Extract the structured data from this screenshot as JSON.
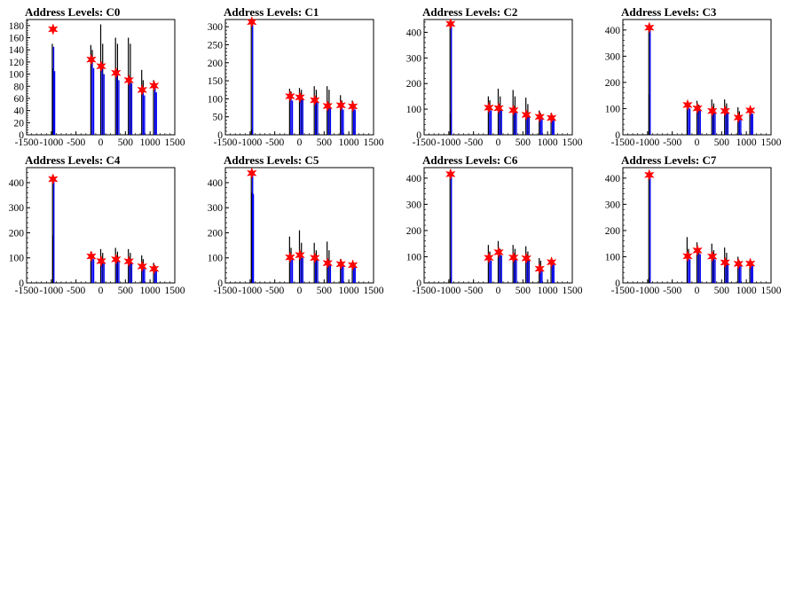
{
  "chart_data": [
    {
      "type": "bar",
      "title": "Address Levels: C0",
      "xlim": [
        -1500,
        1500
      ],
      "ylim": [
        0,
        190
      ],
      "yticks": [
        0,
        20,
        40,
        60,
        80,
        100,
        120,
        140,
        160,
        180
      ],
      "xticks": [
        -1500,
        -1000,
        -500,
        0,
        500,
        1000,
        1500
      ],
      "black_bars": [
        [
          -980,
          150
        ],
        [
          -960,
          110
        ],
        [
          -200,
          148
        ],
        [
          -170,
          140
        ],
        [
          0,
          182
        ],
        [
          40,
          150
        ],
        [
          300,
          160
        ],
        [
          340,
          150
        ],
        [
          560,
          160
        ],
        [
          600,
          150
        ],
        [
          830,
          107
        ],
        [
          860,
          90
        ],
        [
          1070,
          90
        ],
        [
          1100,
          80
        ]
      ],
      "blue_bars": [
        [
          -980,
          145
        ],
        [
          -960,
          105
        ],
        [
          -200,
          118
        ],
        [
          -170,
          110
        ],
        [
          0,
          115
        ],
        [
          40,
          100
        ],
        [
          300,
          100
        ],
        [
          340,
          90
        ],
        [
          560,
          90
        ],
        [
          600,
          85
        ],
        [
          830,
          72
        ],
        [
          860,
          65
        ],
        [
          1070,
          80
        ],
        [
          1100,
          70
        ]
      ],
      "peaks": [
        [
          -965,
          174
        ],
        [
          -190,
          124
        ],
        [
          10,
          113
        ],
        [
          310,
          102
        ],
        [
          570,
          90
        ],
        [
          840,
          74
        ],
        [
          1080,
          81
        ]
      ]
    },
    {
      "type": "bar",
      "title": "Address Levels: C1",
      "xlim": [
        -1500,
        1500
      ],
      "ylim": [
        0,
        320
      ],
      "yticks": [
        0,
        50,
        100,
        150,
        200,
        250,
        300
      ],
      "xticks": [
        -1500,
        -1000,
        -500,
        0,
        500,
        1000,
        1500
      ],
      "black_bars": [
        [
          -975,
          310
        ],
        [
          -960,
          15
        ],
        [
          -200,
          128
        ],
        [
          -170,
          120
        ],
        [
          0,
          130
        ],
        [
          40,
          125
        ],
        [
          300,
          135
        ],
        [
          340,
          125
        ],
        [
          560,
          135
        ],
        [
          600,
          125
        ],
        [
          830,
          110
        ],
        [
          860,
          95
        ],
        [
          1070,
          95
        ],
        [
          1100,
          85
        ]
      ],
      "blue_bars": [
        [
          -975,
          305
        ],
        [
          -200,
          105
        ],
        [
          -170,
          95
        ],
        [
          0,
          110
        ],
        [
          40,
          100
        ],
        [
          300,
          100
        ],
        [
          340,
          90
        ],
        [
          560,
          80
        ],
        [
          600,
          75
        ],
        [
          830,
          80
        ],
        [
          860,
          70
        ],
        [
          1070,
          80
        ],
        [
          1100,
          70
        ]
      ],
      "peaks": [
        [
          -965,
          313
        ],
        [
          -190,
          107
        ],
        [
          10,
          104
        ],
        [
          310,
          96
        ],
        [
          570,
          80
        ],
        [
          840,
          82
        ],
        [
          1080,
          79
        ]
      ]
    },
    {
      "type": "bar",
      "title": "Address Levels: C2",
      "xlim": [
        -1500,
        1500
      ],
      "ylim": [
        0,
        450
      ],
      "yticks": [
        0,
        100,
        200,
        300,
        400
      ],
      "xticks": [
        -1500,
        -1000,
        -500,
        0,
        500,
        1000,
        1500
      ],
      "black_bars": [
        [
          -975,
          440
        ],
        [
          -960,
          85
        ],
        [
          -200,
          150
        ],
        [
          -170,
          135
        ],
        [
          0,
          180
        ],
        [
          40,
          150
        ],
        [
          300,
          175
        ],
        [
          340,
          150
        ],
        [
          560,
          145
        ],
        [
          600,
          120
        ],
        [
          830,
          95
        ],
        [
          860,
          85
        ],
        [
          1070,
          85
        ],
        [
          1100,
          75
        ]
      ],
      "blue_bars": [
        [
          -975,
          425
        ],
        [
          -200,
          110
        ],
        [
          -170,
          95
        ],
        [
          0,
          110
        ],
        [
          40,
          100
        ],
        [
          300,
          95
        ],
        [
          340,
          90
        ],
        [
          560,
          80
        ],
        [
          600,
          75
        ],
        [
          830,
          70
        ],
        [
          860,
          65
        ],
        [
          1070,
          65
        ],
        [
          1100,
          60
        ]
      ],
      "peaks": [
        [
          -965,
          433
        ],
        [
          -190,
          106
        ],
        [
          10,
          104
        ],
        [
          310,
          96
        ],
        [
          570,
          78
        ],
        [
          840,
          70
        ],
        [
          1080,
          66
        ]
      ]
    },
    {
      "type": "bar",
      "title": "Address Levels: C3",
      "xlim": [
        -1500,
        1500
      ],
      "ylim": [
        0,
        440
      ],
      "yticks": [
        0,
        100,
        200,
        300,
        400
      ],
      "xticks": [
        -1500,
        -1000,
        -500,
        0,
        500,
        1000,
        1500
      ],
      "black_bars": [
        [
          -975,
          415
        ],
        [
          -960,
          155
        ],
        [
          -200,
          120
        ],
        [
          -170,
          110
        ],
        [
          0,
          130
        ],
        [
          40,
          115
        ],
        [
          300,
          135
        ],
        [
          340,
          120
        ],
        [
          560,
          135
        ],
        [
          600,
          120
        ],
        [
          830,
          105
        ],
        [
          860,
          90
        ],
        [
          1070,
          95
        ],
        [
          1100,
          85
        ]
      ],
      "blue_bars": [
        [
          -975,
          410
        ],
        [
          -200,
          110
        ],
        [
          -170,
          100
        ],
        [
          0,
          105
        ],
        [
          40,
          95
        ],
        [
          300,
          95
        ],
        [
          340,
          90
        ],
        [
          560,
          90
        ],
        [
          600,
          85
        ],
        [
          830,
          70
        ],
        [
          860,
          65
        ],
        [
          1070,
          90
        ],
        [
          1100,
          80
        ]
      ],
      "peaks": [
        [
          -965,
          409
        ],
        [
          -190,
          114
        ],
        [
          10,
          101
        ],
        [
          310,
          91
        ],
        [
          570,
          91
        ],
        [
          840,
          66
        ],
        [
          1080,
          93
        ]
      ]
    },
    {
      "type": "bar",
      "title": "Address Levels: C4",
      "xlim": [
        -1500,
        1500
      ],
      "ylim": [
        0,
        460
      ],
      "yticks": [
        0,
        100,
        200,
        300,
        400
      ],
      "xticks": [
        -1500,
        -1000,
        -500,
        0,
        500,
        1000,
        1500
      ],
      "black_bars": [
        [
          -975,
          430
        ],
        [
          -960,
          190
        ],
        [
          -200,
          125
        ],
        [
          -170,
          115
        ],
        [
          0,
          135
        ],
        [
          40,
          120
        ],
        [
          300,
          140
        ],
        [
          340,
          125
        ],
        [
          560,
          135
        ],
        [
          600,
          120
        ],
        [
          830,
          110
        ],
        [
          860,
          95
        ],
        [
          1070,
          80
        ],
        [
          1100,
          70
        ]
      ],
      "blue_bars": [
        [
          -975,
          410
        ],
        [
          -200,
          105
        ],
        [
          -170,
          95
        ],
        [
          0,
          95
        ],
        [
          40,
          85
        ],
        [
          300,
          95
        ],
        [
          340,
          85
        ],
        [
          560,
          90
        ],
        [
          600,
          80
        ],
        [
          830,
          65
        ],
        [
          860,
          60
        ],
        [
          1070,
          55
        ],
        [
          1100,
          50
        ]
      ],
      "peaks": [
        [
          -965,
          414
        ],
        [
          -190,
          106
        ],
        [
          10,
          87
        ],
        [
          310,
          94
        ],
        [
          570,
          86
        ],
        [
          840,
          66
        ],
        [
          1080,
          56
        ]
      ]
    },
    {
      "type": "bar",
      "title": "Address Levels: C5",
      "xlim": [
        -1500,
        1500
      ],
      "ylim": [
        0,
        460
      ],
      "yticks": [
        0,
        100,
        200,
        300,
        400
      ],
      "xticks": [
        -1500,
        -1000,
        -500,
        0,
        500,
        1000,
        1500
      ],
      "black_bars": [
        [
          -975,
          440
        ],
        [
          -960,
          360
        ],
        [
          -200,
          185
        ],
        [
          -170,
          140
        ],
        [
          0,
          210
        ],
        [
          40,
          160
        ],
        [
          300,
          160
        ],
        [
          340,
          130
        ],
        [
          560,
          165
        ],
        [
          600,
          130
        ],
        [
          830,
          95
        ],
        [
          860,
          85
        ],
        [
          1070,
          85
        ],
        [
          1100,
          75
        ]
      ],
      "blue_bars": [
        [
          -975,
          430
        ],
        [
          -960,
          355
        ],
        [
          -200,
          105
        ],
        [
          -170,
          95
        ],
        [
          0,
          115
        ],
        [
          40,
          100
        ],
        [
          300,
          100
        ],
        [
          340,
          90
        ],
        [
          560,
          80
        ],
        [
          600,
          75
        ],
        [
          830,
          75
        ],
        [
          860,
          70
        ],
        [
          1070,
          70
        ],
        [
          1100,
          65
        ]
      ],
      "peaks": [
        [
          -965,
          438
        ],
        [
          -190,
          102
        ],
        [
          10,
          111
        ],
        [
          310,
          100
        ],
        [
          570,
          79
        ],
        [
          840,
          75
        ],
        [
          1080,
          71
        ]
      ]
    },
    {
      "type": "bar",
      "title": "Address Levels: C6",
      "xlim": [
        -1500,
        1500
      ],
      "ylim": [
        0,
        440
      ],
      "yticks": [
        0,
        100,
        200,
        300,
        400
      ],
      "xticks": [
        -1500,
        -1000,
        -500,
        0,
        500,
        1000,
        1500
      ],
      "black_bars": [
        [
          -975,
          420
        ],
        [
          -960,
          20
        ],
        [
          -200,
          145
        ],
        [
          -170,
          120
        ],
        [
          0,
          160
        ],
        [
          40,
          130
        ],
        [
          300,
          145
        ],
        [
          340,
          130
        ],
        [
          560,
          140
        ],
        [
          600,
          120
        ],
        [
          830,
          95
        ],
        [
          860,
          85
        ],
        [
          1070,
          85
        ],
        [
          1100,
          75
        ]
      ],
      "blue_bars": [
        [
          -975,
          415
        ],
        [
          -200,
          95
        ],
        [
          -170,
          85
        ],
        [
          0,
          120
        ],
        [
          40,
          105
        ],
        [
          300,
          100
        ],
        [
          340,
          90
        ],
        [
          560,
          95
        ],
        [
          600,
          85
        ],
        [
          830,
          55
        ],
        [
          860,
          50
        ],
        [
          1070,
          80
        ],
        [
          1100,
          70
        ]
      ],
      "peaks": [
        [
          -965,
          415
        ],
        [
          -190,
          96
        ],
        [
          10,
          117
        ],
        [
          310,
          97
        ],
        [
          570,
          94
        ],
        [
          840,
          54
        ],
        [
          1080,
          79
        ]
      ]
    },
    {
      "type": "bar",
      "title": "Address Levels: C7",
      "xlim": [
        -1500,
        1500
      ],
      "ylim": [
        0,
        440
      ],
      "yticks": [
        0,
        100,
        200,
        300,
        400
      ],
      "xticks": [
        -1500,
        -1000,
        -500,
        0,
        500,
        1000,
        1500
      ],
      "black_bars": [
        [
          -975,
          425
        ],
        [
          -960,
          20
        ],
        [
          -200,
          175
        ],
        [
          -170,
          130
        ],
        [
          0,
          155
        ],
        [
          40,
          130
        ],
        [
          300,
          150
        ],
        [
          340,
          125
        ],
        [
          560,
          135
        ],
        [
          600,
          115
        ],
        [
          830,
          100
        ],
        [
          860,
          85
        ],
        [
          1070,
          85
        ],
        [
          1100,
          75
        ]
      ],
      "blue_bars": [
        [
          -975,
          410
        ],
        [
          -200,
          100
        ],
        [
          -170,
          90
        ],
        [
          0,
          125
        ],
        [
          40,
          110
        ],
        [
          300,
          100
        ],
        [
          340,
          90
        ],
        [
          560,
          80
        ],
        [
          600,
          75
        ],
        [
          830,
          75
        ],
        [
          860,
          70
        ],
        [
          1070,
          75
        ],
        [
          1100,
          70
        ]
      ],
      "peaks": [
        [
          -965,
          412
        ],
        [
          -190,
          102
        ],
        [
          10,
          124
        ],
        [
          310,
          101
        ],
        [
          570,
          78
        ],
        [
          840,
          73
        ],
        [
          1080,
          74
        ]
      ]
    }
  ],
  "colors": {
    "black_series": "#000000",
    "blue_series": "#0000ff",
    "peak_marker": "#ff0000",
    "axis": "#000000"
  }
}
